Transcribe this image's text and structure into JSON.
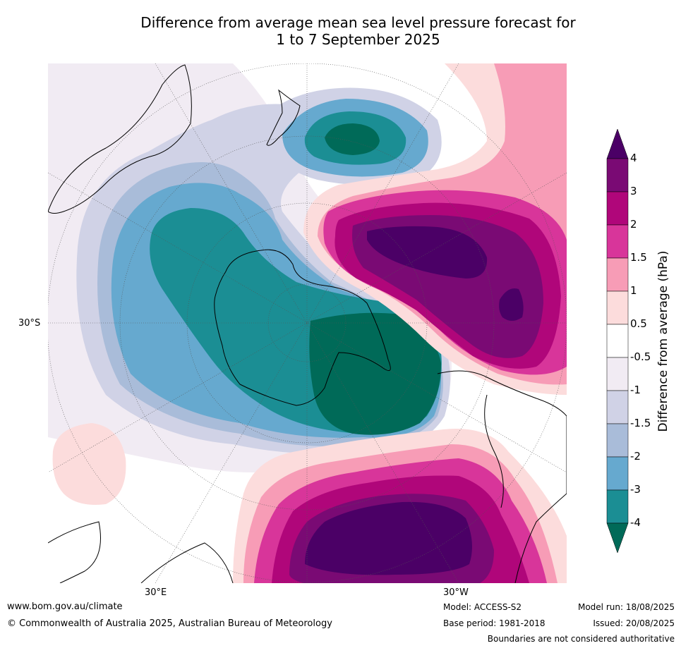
{
  "title": {
    "line1": "Difference from average mean sea level pressure forecast for",
    "line2": "1 to 7 September 2025"
  },
  "axes": {
    "lat_label": "30°S",
    "lon_left": "30°E",
    "lon_right": "30°W"
  },
  "colorbar": {
    "label": "Difference from average (hPa)",
    "ticks": [
      "4",
      "3",
      "2",
      "1.5",
      "1",
      "0.5",
      "-0.5",
      "-1",
      "-1.5",
      "-2",
      "-3",
      "-4"
    ],
    "colors": [
      "#4b0066",
      "#7a0a74",
      "#b0067a",
      "#d8359a",
      "#f79cb6",
      "#fcdcdc",
      "#ffffff",
      "#f1ebf3",
      "#d0d2e6",
      "#a9bcd9",
      "#66a9cf",
      "#1b8e94",
      "#006a58"
    ]
  },
  "footer": {
    "website": "www.bom.gov.au/climate",
    "copyright": "© Commonwealth of Australia 2025, Australian Bureau of Meteorology",
    "model": "Model: ACCESS-S2",
    "base_period": "Base period: 1981-2018",
    "model_run": "Model run: 18/08/2025",
    "issued": "Issued: 20/08/2025",
    "disclaimer": "Boundaries are not considered authoritative"
  }
}
